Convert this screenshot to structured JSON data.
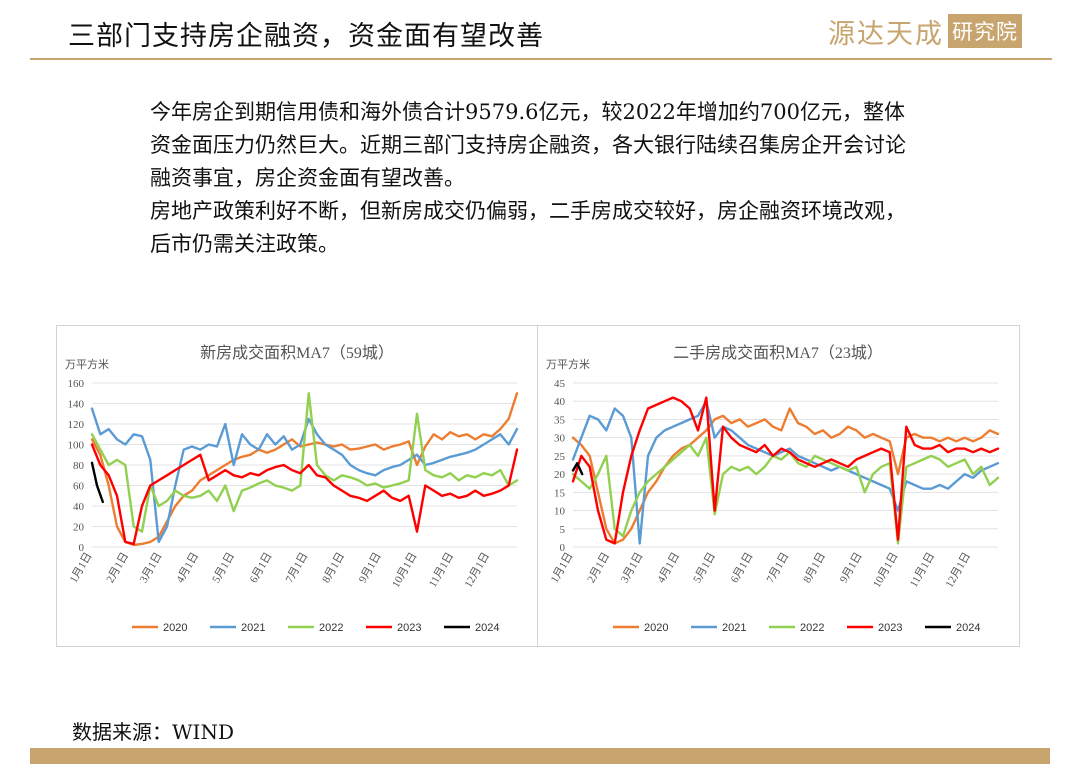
{
  "header": {
    "title": "三部门支持房企融资，资金面有望改善",
    "logo_main": "源达天成",
    "logo_sub": "研究院"
  },
  "summary": {
    "paragraph_1": "今年房企到期信用债和海外债合计9579.6亿元，较2022年增加约700亿元，整体资金面压力仍然巨大。近期三部门支持房企融资，各大银行陆续召集房企开会讨论融资事宜，房企资金面有望改善。",
    "paragraph_2": "房地产政策利好不断，但新房成交仍偏弱，二手房成交较好，房企融资环境改观，后市仍需关注政策。"
  },
  "source": "数据来源：WIND",
  "colors": {
    "accent": "#c8a46e"
  },
  "chart_data": [
    {
      "type": "line",
      "title": "新房成交面积MA7（59城）",
      "unit_label": "万平方米",
      "ylim": [
        0,
        160
      ],
      "yticks": [
        0,
        20,
        40,
        60,
        80,
        100,
        120,
        140,
        160
      ],
      "xlim": [
        1,
        52
      ],
      "xticks": [
        {
          "x": 1,
          "label": "1月1日"
        },
        {
          "x": 5.4,
          "label": "2月1日"
        },
        {
          "x": 9.4,
          "label": "3月1日"
        },
        {
          "x": 13.8,
          "label": "4月1日"
        },
        {
          "x": 18.1,
          "label": "5月1日"
        },
        {
          "x": 22.6,
          "label": "6月1日"
        },
        {
          "x": 26.9,
          "label": "7月1日"
        },
        {
          "x": 31.3,
          "label": "8月1日"
        },
        {
          "x": 35.7,
          "label": "9月1日"
        },
        {
          "x": 40.0,
          "label": "10月1日"
        },
        {
          "x": 44.4,
          "label": "11月1日"
        },
        {
          "x": 48.7,
          "label": "12月1日"
        }
      ],
      "grid": "horizontal",
      "legend": "bottom",
      "series": [
        {
          "name": "2020",
          "color": "#ed7d31",
          "x": [
            1,
            2,
            3,
            4,
            5,
            6,
            7,
            8,
            9,
            10,
            11,
            12,
            13,
            14,
            15,
            16,
            17,
            18,
            19,
            20,
            21,
            22,
            23,
            24,
            25,
            26,
            27,
            28,
            29,
            30,
            31,
            32,
            33,
            34,
            35,
            36,
            37,
            38,
            39,
            40,
            41,
            42,
            43,
            44,
            45,
            46,
            47,
            48,
            49,
            50,
            51,
            52
          ],
          "values": [
            105,
            90,
            60,
            20,
            5,
            2,
            3,
            5,
            10,
            25,
            40,
            50,
            55,
            65,
            70,
            75,
            80,
            85,
            88,
            90,
            95,
            92,
            95,
            100,
            105,
            98,
            100,
            102,
            100,
            98,
            100,
            95,
            96,
            98,
            100,
            95,
            98,
            100,
            103,
            80,
            98,
            110,
            105,
            112,
            108,
            110,
            105,
            110,
            108,
            115,
            125,
            150
          ]
        },
        {
          "name": "2021",
          "color": "#5b9bd5",
          "x": [
            1,
            2,
            3,
            4,
            5,
            6,
            7,
            8,
            9,
            10,
            11,
            12,
            13,
            14,
            15,
            16,
            17,
            18,
            19,
            20,
            21,
            22,
            23,
            24,
            25,
            26,
            27,
            28,
            29,
            30,
            31,
            32,
            33,
            34,
            35,
            36,
            37,
            38,
            39,
            40,
            41,
            42,
            43,
            44,
            45,
            46,
            47,
            48,
            49,
            50,
            51,
            52
          ],
          "values": [
            135,
            110,
            115,
            105,
            100,
            110,
            108,
            85,
            5,
            20,
            60,
            95,
            98,
            95,
            100,
            98,
            120,
            80,
            110,
            100,
            95,
            110,
            100,
            108,
            95,
            100,
            125,
            110,
            100,
            95,
            90,
            80,
            75,
            72,
            70,
            75,
            78,
            80,
            85,
            90,
            80,
            82,
            85,
            88,
            90,
            92,
            95,
            100,
            105,
            110,
            100,
            115
          ]
        },
        {
          "name": "2022",
          "color": "#92d050",
          "x": [
            1,
            2,
            3,
            4,
            5,
            6,
            7,
            8,
            9,
            10,
            11,
            12,
            13,
            14,
            15,
            16,
            17,
            18,
            19,
            20,
            21,
            22,
            23,
            24,
            25,
            26,
            27,
            28,
            29,
            30,
            31,
            32,
            33,
            34,
            35,
            36,
            37,
            38,
            39,
            40,
            41,
            42,
            43,
            44,
            45,
            46,
            47,
            48,
            49,
            50,
            51,
            52
          ],
          "values": [
            110,
            95,
            80,
            85,
            80,
            20,
            15,
            60,
            40,
            45,
            55,
            50,
            48,
            50,
            55,
            45,
            60,
            35,
            55,
            58,
            62,
            65,
            60,
            58,
            55,
            60,
            150,
            80,
            70,
            65,
            70,
            68,
            65,
            60,
            62,
            58,
            60,
            62,
            65,
            130,
            75,
            70,
            68,
            72,
            65,
            70,
            68,
            72,
            70,
            75,
            60,
            65
          ]
        },
        {
          "name": "2023",
          "color": "#ff0000",
          "x": [
            1,
            2,
            3,
            4,
            5,
            6,
            7,
            8,
            9,
            10,
            11,
            12,
            13,
            14,
            15,
            16,
            17,
            18,
            19,
            20,
            21,
            22,
            23,
            24,
            25,
            26,
            27,
            28,
            29,
            30,
            31,
            32,
            33,
            34,
            35,
            36,
            37,
            38,
            39,
            40,
            41,
            42,
            43,
            44,
            45,
            46,
            47,
            48,
            49,
            50,
            51,
            52
          ],
          "values": [
            100,
            80,
            70,
            50,
            5,
            3,
            40,
            60,
            65,
            70,
            75,
            80,
            85,
            90,
            65,
            70,
            75,
            70,
            68,
            72,
            70,
            75,
            78,
            80,
            75,
            72,
            80,
            70,
            68,
            60,
            55,
            50,
            48,
            45,
            50,
            55,
            48,
            45,
            50,
            15,
            60,
            55,
            50,
            52,
            48,
            50,
            55,
            50,
            52,
            55,
            60,
            95
          ]
        },
        {
          "name": "2024",
          "color": "#000000",
          "x": [
            1,
            1.6,
            2.3
          ],
          "values": [
            82,
            60,
            44
          ]
        }
      ]
    },
    {
      "type": "line",
      "title": "二手房成交面积MA7（23城）",
      "unit_label": "万平方米",
      "ylim": [
        0,
        45
      ],
      "yticks": [
        0,
        5,
        10,
        15,
        20,
        25,
        30,
        35,
        40,
        45
      ],
      "xlim": [
        1,
        52
      ],
      "xticks": [
        {
          "x": 1,
          "label": "1月1日"
        },
        {
          "x": 5.4,
          "label": "2月1日"
        },
        {
          "x": 9.4,
          "label": "3月1日"
        },
        {
          "x": 13.8,
          "label": "4月1日"
        },
        {
          "x": 18.1,
          "label": "5月1日"
        },
        {
          "x": 22.6,
          "label": "6月1日"
        },
        {
          "x": 26.9,
          "label": "7月1日"
        },
        {
          "x": 31.3,
          "label": "8月1日"
        },
        {
          "x": 35.7,
          "label": "9月1日"
        },
        {
          "x": 40.0,
          "label": "10月1日"
        },
        {
          "x": 44.4,
          "label": "11月1日"
        },
        {
          "x": 48.7,
          "label": "12月1日"
        }
      ],
      "grid": "horizontal",
      "legend": "bottom",
      "series": [
        {
          "name": "2020",
          "color": "#ed7d31",
          "x": [
            1,
            2,
            3,
            4,
            5,
            6,
            7,
            8,
            9,
            10,
            11,
            12,
            13,
            14,
            15,
            16,
            17,
            18,
            19,
            20,
            21,
            22,
            23,
            24,
            25,
            26,
            27,
            28,
            29,
            30,
            31,
            32,
            33,
            34,
            35,
            36,
            37,
            38,
            39,
            40,
            41,
            42,
            43,
            44,
            45,
            46,
            47,
            48,
            49,
            50,
            51,
            52
          ],
          "values": [
            30,
            28,
            25,
            15,
            5,
            1,
            2,
            5,
            10,
            15,
            18,
            22,
            25,
            27,
            28,
            30,
            32,
            35,
            36,
            34,
            35,
            33,
            34,
            35,
            33,
            32,
            38,
            34,
            33,
            31,
            32,
            30,
            31,
            33,
            32,
            30,
            31,
            30,
            29,
            20,
            30,
            31,
            30,
            30,
            29,
            30,
            29,
            30,
            29,
            30,
            32,
            31
          ]
        },
        {
          "name": "2021",
          "color": "#5b9bd5",
          "x": [
            1,
            2,
            3,
            4,
            5,
            6,
            7,
            8,
            9,
            10,
            11,
            12,
            13,
            14,
            15,
            16,
            17,
            18,
            19,
            20,
            21,
            22,
            23,
            24,
            25,
            26,
            27,
            28,
            29,
            30,
            31,
            32,
            33,
            34,
            35,
            36,
            37,
            38,
            39,
            40,
            41,
            42,
            43,
            44,
            45,
            46,
            47,
            48,
            49,
            50,
            51,
            52
          ],
          "values": [
            24,
            30,
            36,
            35,
            32,
            38,
            36,
            30,
            1,
            25,
            30,
            32,
            33,
            34,
            35,
            36,
            40,
            30,
            33,
            32,
            30,
            28,
            27,
            26,
            25,
            26,
            27,
            25,
            24,
            23,
            22,
            21,
            22,
            21,
            20,
            19,
            18,
            17,
            16,
            10,
            18,
            17,
            16,
            16,
            17,
            16,
            18,
            20,
            19,
            21,
            22,
            23
          ]
        },
        {
          "name": "2022",
          "color": "#92d050",
          "x": [
            1,
            2,
            3,
            4,
            5,
            6,
            7,
            8,
            9,
            10,
            11,
            12,
            13,
            14,
            15,
            16,
            17,
            18,
            19,
            20,
            21,
            22,
            23,
            24,
            25,
            26,
            27,
            28,
            29,
            30,
            31,
            32,
            33,
            34,
            35,
            36,
            37,
            38,
            39,
            40,
            41,
            42,
            43,
            44,
            45,
            46,
            47,
            48,
            49,
            50,
            51,
            52
          ],
          "values": [
            20,
            18,
            16,
            20,
            25,
            5,
            3,
            10,
            15,
            18,
            20,
            22,
            24,
            26,
            28,
            25,
            30,
            9,
            20,
            22,
            21,
            22,
            20,
            22,
            25,
            24,
            26,
            23,
            22,
            25,
            24,
            23,
            22,
            21,
            22,
            15,
            20,
            22,
            23,
            1,
            22,
            23,
            24,
            25,
            24,
            22,
            23,
            24,
            20,
            22,
            17,
            19
          ]
        },
        {
          "name": "2023",
          "color": "#ff0000",
          "x": [
            1,
            2,
            3,
            4,
            5,
            6,
            7,
            8,
            9,
            10,
            11,
            12,
            13,
            14,
            15,
            16,
            17,
            18,
            19,
            20,
            21,
            22,
            23,
            24,
            25,
            26,
            27,
            28,
            29,
            30,
            31,
            32,
            33,
            34,
            35,
            36,
            37,
            38,
            39,
            40,
            41,
            42,
            43,
            44,
            45,
            46,
            47,
            48,
            49,
            50,
            51,
            52
          ],
          "values": [
            18,
            25,
            22,
            10,
            2,
            1,
            15,
            25,
            32,
            38,
            39,
            40,
            41,
            40,
            38,
            32,
            41,
            10,
            33,
            30,
            28,
            27,
            26,
            28,
            25,
            27,
            26,
            24,
            23,
            22,
            23,
            24,
            23,
            22,
            24,
            25,
            26,
            27,
            26,
            2,
            33,
            28,
            27,
            27,
            28,
            26,
            27,
            27,
            26,
            27,
            26,
            27
          ]
        },
        {
          "name": "2024",
          "color": "#000000",
          "x": [
            1,
            1.5,
            2.1
          ],
          "values": [
            21,
            23,
            20
          ]
        }
      ]
    }
  ]
}
